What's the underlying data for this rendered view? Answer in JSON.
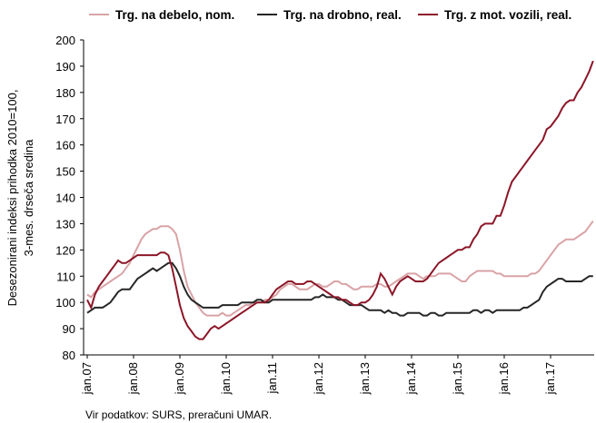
{
  "chart_data": {
    "type": "line",
    "ylabel": [
      "Desezonirani indeksi prihodka 2010=100,",
      "3-mes. drseča sredina"
    ],
    "source": "Vir podatkov: SURS, preračuni UMAR.",
    "categories": [
      "jan.07",
      null,
      null,
      null,
      null,
      null,
      null,
      null,
      null,
      null,
      null,
      null,
      "jan.08",
      null,
      null,
      null,
      null,
      null,
      null,
      null,
      null,
      null,
      null,
      null,
      "jan.09",
      null,
      null,
      null,
      null,
      null,
      null,
      null,
      null,
      null,
      null,
      null,
      "jan.10",
      null,
      null,
      null,
      null,
      null,
      null,
      null,
      null,
      null,
      null,
      null,
      "jan.11",
      null,
      null,
      null,
      null,
      null,
      null,
      null,
      null,
      null,
      null,
      null,
      "jan.12",
      null,
      null,
      null,
      null,
      null,
      null,
      null,
      null,
      null,
      null,
      null,
      "jan.13",
      null,
      null,
      null,
      null,
      null,
      null,
      null,
      null,
      null,
      null,
      null,
      "jan.14",
      null,
      null,
      null,
      null,
      null,
      null,
      null,
      null,
      null,
      null,
      null,
      "jan.15",
      null,
      null,
      null,
      null,
      null,
      null,
      null,
      null,
      null,
      null,
      null,
      "jan.16",
      null,
      null,
      null,
      null,
      null,
      null,
      null,
      null,
      null,
      null,
      null,
      "jan.17",
      null,
      null,
      null,
      null,
      null,
      null,
      null,
      null,
      null,
      null,
      null
    ],
    "series": [
      {
        "name": "Trg. na debelo, nom.",
        "color": "#d9a3a6",
        "values": [
          103,
          102,
          104,
          105,
          106,
          107,
          108,
          109,
          110,
          111,
          113,
          115,
          118,
          121,
          124,
          126,
          127,
          128,
          128,
          129,
          129,
          129,
          128,
          126,
          120,
          112,
          106,
          103,
          100,
          98,
          96,
          95,
          95,
          95,
          95,
          96,
          95,
          95,
          96,
          97,
          98,
          99,
          99,
          100,
          100,
          100,
          101,
          101,
          102,
          103,
          105,
          106,
          107,
          107,
          106,
          105,
          105,
          105,
          106,
          107,
          107,
          106,
          106,
          107,
          108,
          108,
          107,
          107,
          106,
          105,
          105,
          106,
          106,
          106,
          106,
          107,
          107,
          106,
          106,
          107,
          108,
          109,
          110,
          111,
          111,
          111,
          110,
          109,
          110,
          110,
          110,
          111,
          111,
          111,
          111,
          110,
          109,
          108,
          108,
          110,
          111,
          112,
          112,
          112,
          112,
          112,
          111,
          111,
          110,
          110,
          110,
          110,
          110,
          110,
          110,
          111,
          111,
          112,
          114,
          116,
          118,
          120,
          122,
          123,
          124,
          124,
          124,
          125,
          126,
          127,
          129,
          131
        ]
      },
      {
        "name": "Trg. na drobno, real.",
        "color": "#262626",
        "values": [
          96,
          97,
          98,
          98,
          98,
          99,
          100,
          102,
          104,
          105,
          105,
          105,
          107,
          109,
          110,
          111,
          112,
          113,
          112,
          113,
          114,
          115,
          115,
          113,
          110,
          106,
          103,
          101,
          100,
          99,
          98,
          98,
          98,
          98,
          98,
          99,
          99,
          99,
          99,
          99,
          100,
          100,
          100,
          100,
          101,
          101,
          100,
          100,
          101,
          101,
          101,
          101,
          101,
          101,
          101,
          101,
          101,
          101,
          101,
          102,
          102,
          103,
          102,
          102,
          102,
          101,
          101,
          100,
          99,
          99,
          99,
          99,
          98,
          97,
          97,
          97,
          97,
          96,
          97,
          96,
          96,
          95,
          95,
          96,
          96,
          96,
          96,
          95,
          95,
          96,
          96,
          95,
          95,
          96,
          96,
          96,
          96,
          96,
          96,
          96,
          97,
          97,
          96,
          97,
          97,
          96,
          97,
          97,
          97,
          97,
          97,
          97,
          97,
          98,
          98,
          99,
          100,
          101,
          104,
          106,
          107,
          108,
          109,
          109,
          108,
          108,
          108,
          108,
          108,
          109,
          110,
          110
        ]
      },
      {
        "name": "Trg. z mot. vozili, real.",
        "color": "#8c1628",
        "values": [
          101,
          98,
          103,
          106,
          108,
          110,
          112,
          114,
          116,
          115,
          115,
          116,
          117,
          118,
          118,
          118,
          118,
          118,
          118,
          119,
          119,
          118,
          113,
          106,
          99,
          94,
          91,
          89,
          87,
          86,
          86,
          88,
          90,
          91,
          90,
          91,
          92,
          93,
          94,
          95,
          96,
          97,
          98,
          99,
          100,
          100,
          100,
          101,
          103,
          105,
          106,
          107,
          108,
          108,
          107,
          107,
          107,
          108,
          108,
          107,
          106,
          105,
          104,
          103,
          102,
          102,
          101,
          101,
          100,
          99,
          99,
          100,
          100,
          101,
          103,
          106,
          111,
          109,
          106,
          103,
          106,
          108,
          109,
          110,
          109,
          108,
          108,
          108,
          109,
          111,
          113,
          115,
          116,
          117,
          118,
          119,
          120,
          120,
          121,
          121,
          124,
          126,
          129,
          130,
          130,
          130,
          133,
          133,
          137,
          142,
          146,
          148,
          150,
          152,
          154,
          156,
          158,
          160,
          162,
          166,
          167,
          169,
          171,
          174,
          176,
          177,
          177,
          180,
          182,
          185,
          188,
          192
        ]
      }
    ],
    "ylim": [
      80,
      200
    ],
    "yticks": [
      80,
      90,
      100,
      110,
      120,
      130,
      140,
      150,
      160,
      170,
      180,
      190,
      200
    ]
  }
}
